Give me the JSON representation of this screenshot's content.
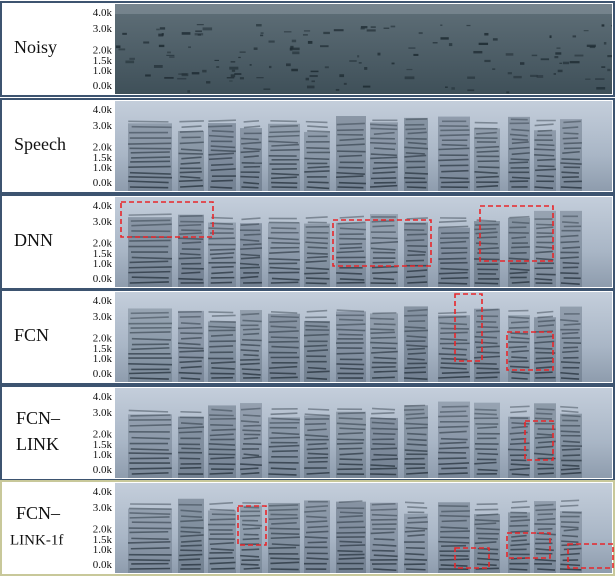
{
  "panels": [
    {
      "label": [
        "Noisy"
      ],
      "ticks": [
        "4.0k",
        "3.0k",
        "2.0k",
        "1.5k",
        "1.0k",
        "0.0k"
      ]
    },
    {
      "label": [
        "Speech"
      ],
      "ticks": [
        "4.0k",
        "3.0k",
        "2.0k",
        "1.5k",
        "1.0k",
        "0.0k"
      ]
    },
    {
      "label": [
        "DNN"
      ],
      "ticks": [
        "4.0k",
        "3.0k",
        "2.0k",
        "1.5k",
        "1.0k",
        "0.0k"
      ]
    },
    {
      "label": [
        "FCN"
      ],
      "ticks": [
        "4.0k",
        "3.0k",
        "2.0k",
        "1.5k",
        "1.0k",
        "0.0k"
      ]
    },
    {
      "label": [
        "FCN–",
        "LINK"
      ],
      "ticks": [
        "4.0k",
        "3.0k",
        "2.0k",
        "1.5k",
        "1.0k",
        "0.0k"
      ]
    },
    {
      "label": [
        "FCN–",
        "LINK-1f"
      ],
      "ticks": [
        "4.0k",
        "3.0k",
        "2.0k",
        "1.5k",
        "1.0k",
        "0.0k"
      ]
    }
  ]
}
